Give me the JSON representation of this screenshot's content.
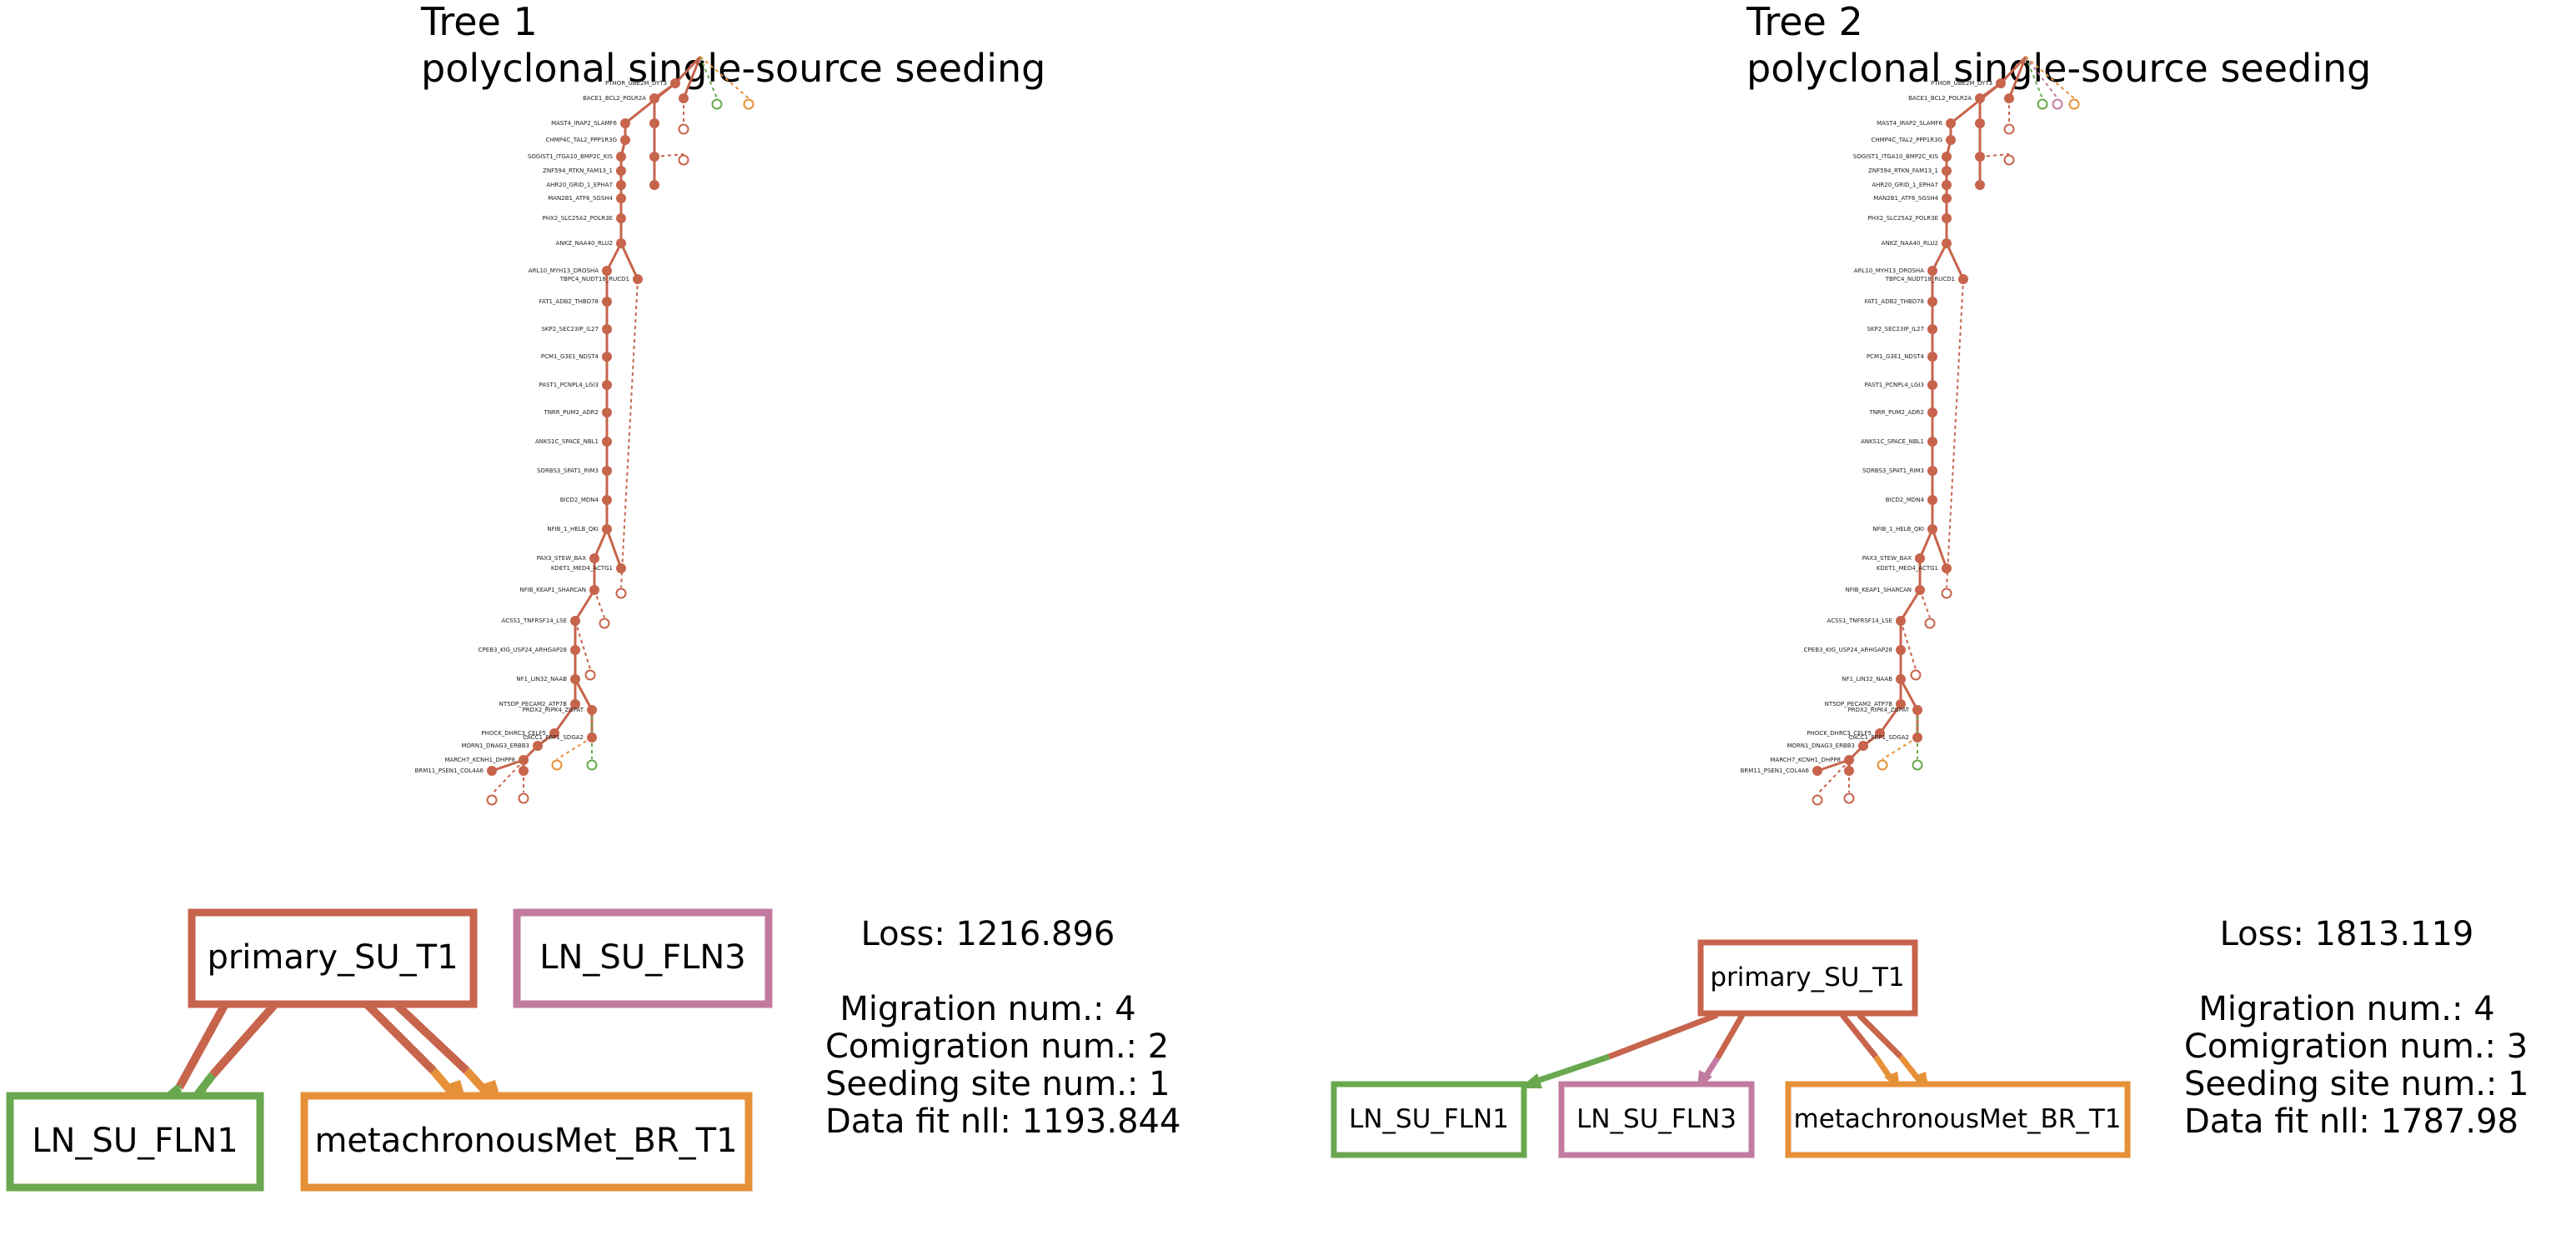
{
  "colors": {
    "primary": "#c7644c",
    "ln_fln1": "#6aa84f",
    "ln_fln3": "#c27ba0",
    "met_br": "#e69138"
  },
  "trees": [
    {
      "title_line1": "Tree 1",
      "title_line2": "polyclonal single-source seeding",
      "loss": "Loss: 1216.896",
      "migration": "Migration num.: 4",
      "comigration": "Comigration num.: 2",
      "seeding": "Seeding site num.: 1",
      "datafit": "Data fit nll: 1193.844",
      "sites": {
        "primary": "primary_SU_T1",
        "ln_fln1": "LN_SU_FLN1",
        "ln_fln3": "LN_SU_FLN3",
        "met_br": "metachronousMet_BR_T1"
      }
    },
    {
      "title_line1": "Tree 2",
      "title_line2": "polyclonal single-source seeding",
      "loss": "Loss: 1813.119",
      "migration": "Migration num.: 4",
      "comigration": "Comigration num.: 3",
      "seeding": "Seeding site num.: 1",
      "datafit": "Data fit nll: 1787.98",
      "sites": {
        "primary": "primary_SU_T1",
        "ln_fln1": "LN_SU_FLN1",
        "ln_fln3": "LN_SU_FLN3",
        "met_br": "metachronousMet_BR_T1"
      }
    }
  ],
  "clone_labels": [
    "PTHOR_UBE2M_DYT3",
    "BACE1_BCL2_POLR2A",
    "MAST4_IRAP2_SLAMF6",
    "CHMP4C_TAL2_PPP1R3G",
    "SOGIST1_ITGA10_BMP2C_KIS",
    "ZNF594_RTKN_FAM13_1",
    "AHR20_GRID_1_EPHA7",
    "MAN2B1_ATF6_SGSH4",
    "PHX2_SLC25A2_POLR3E",
    "ANKZ_NAA40_RLU2",
    "ARL10_MYH13_DROSHA",
    "TBPC4_NUDT18_RUCD1",
    "FAT1_ADB2_THBD78",
    "SKP2_SEC23IP_IL27",
    "PCM1_G3E1_NDST4",
    "PAST1_PCNPL4_LGI3",
    "TNRR_PUM2_ADR2",
    "ANKS1C_SPACE_NBL1",
    "SORBS3_SPAT1_RIM3",
    "BICD2_MDN4",
    "NFIB_1_HELB_QKI",
    "PAX3_STEW_BAX",
    "KDET1_MED4_ACTG1",
    "NFIB_KEAP1_SHARCAN",
    "ACSS1_TNFRSF14_LSE",
    "CPEB3_KIG_USP24_ARHGAP28",
    "NF1_LIN32_NAAB",
    "NT5DP_PECAM2_ATP7B",
    "PRDX2_RIPK4_ZGPAT",
    "PHOCK_DHRC3_CELF5",
    "CACC1_FBP1_SDGA2",
    "MORN1_DNAG3_ERBB3",
    "MARCH7_KCNH1_DHPP8",
    "BRM11_PSEN1_COL4A6"
  ]
}
